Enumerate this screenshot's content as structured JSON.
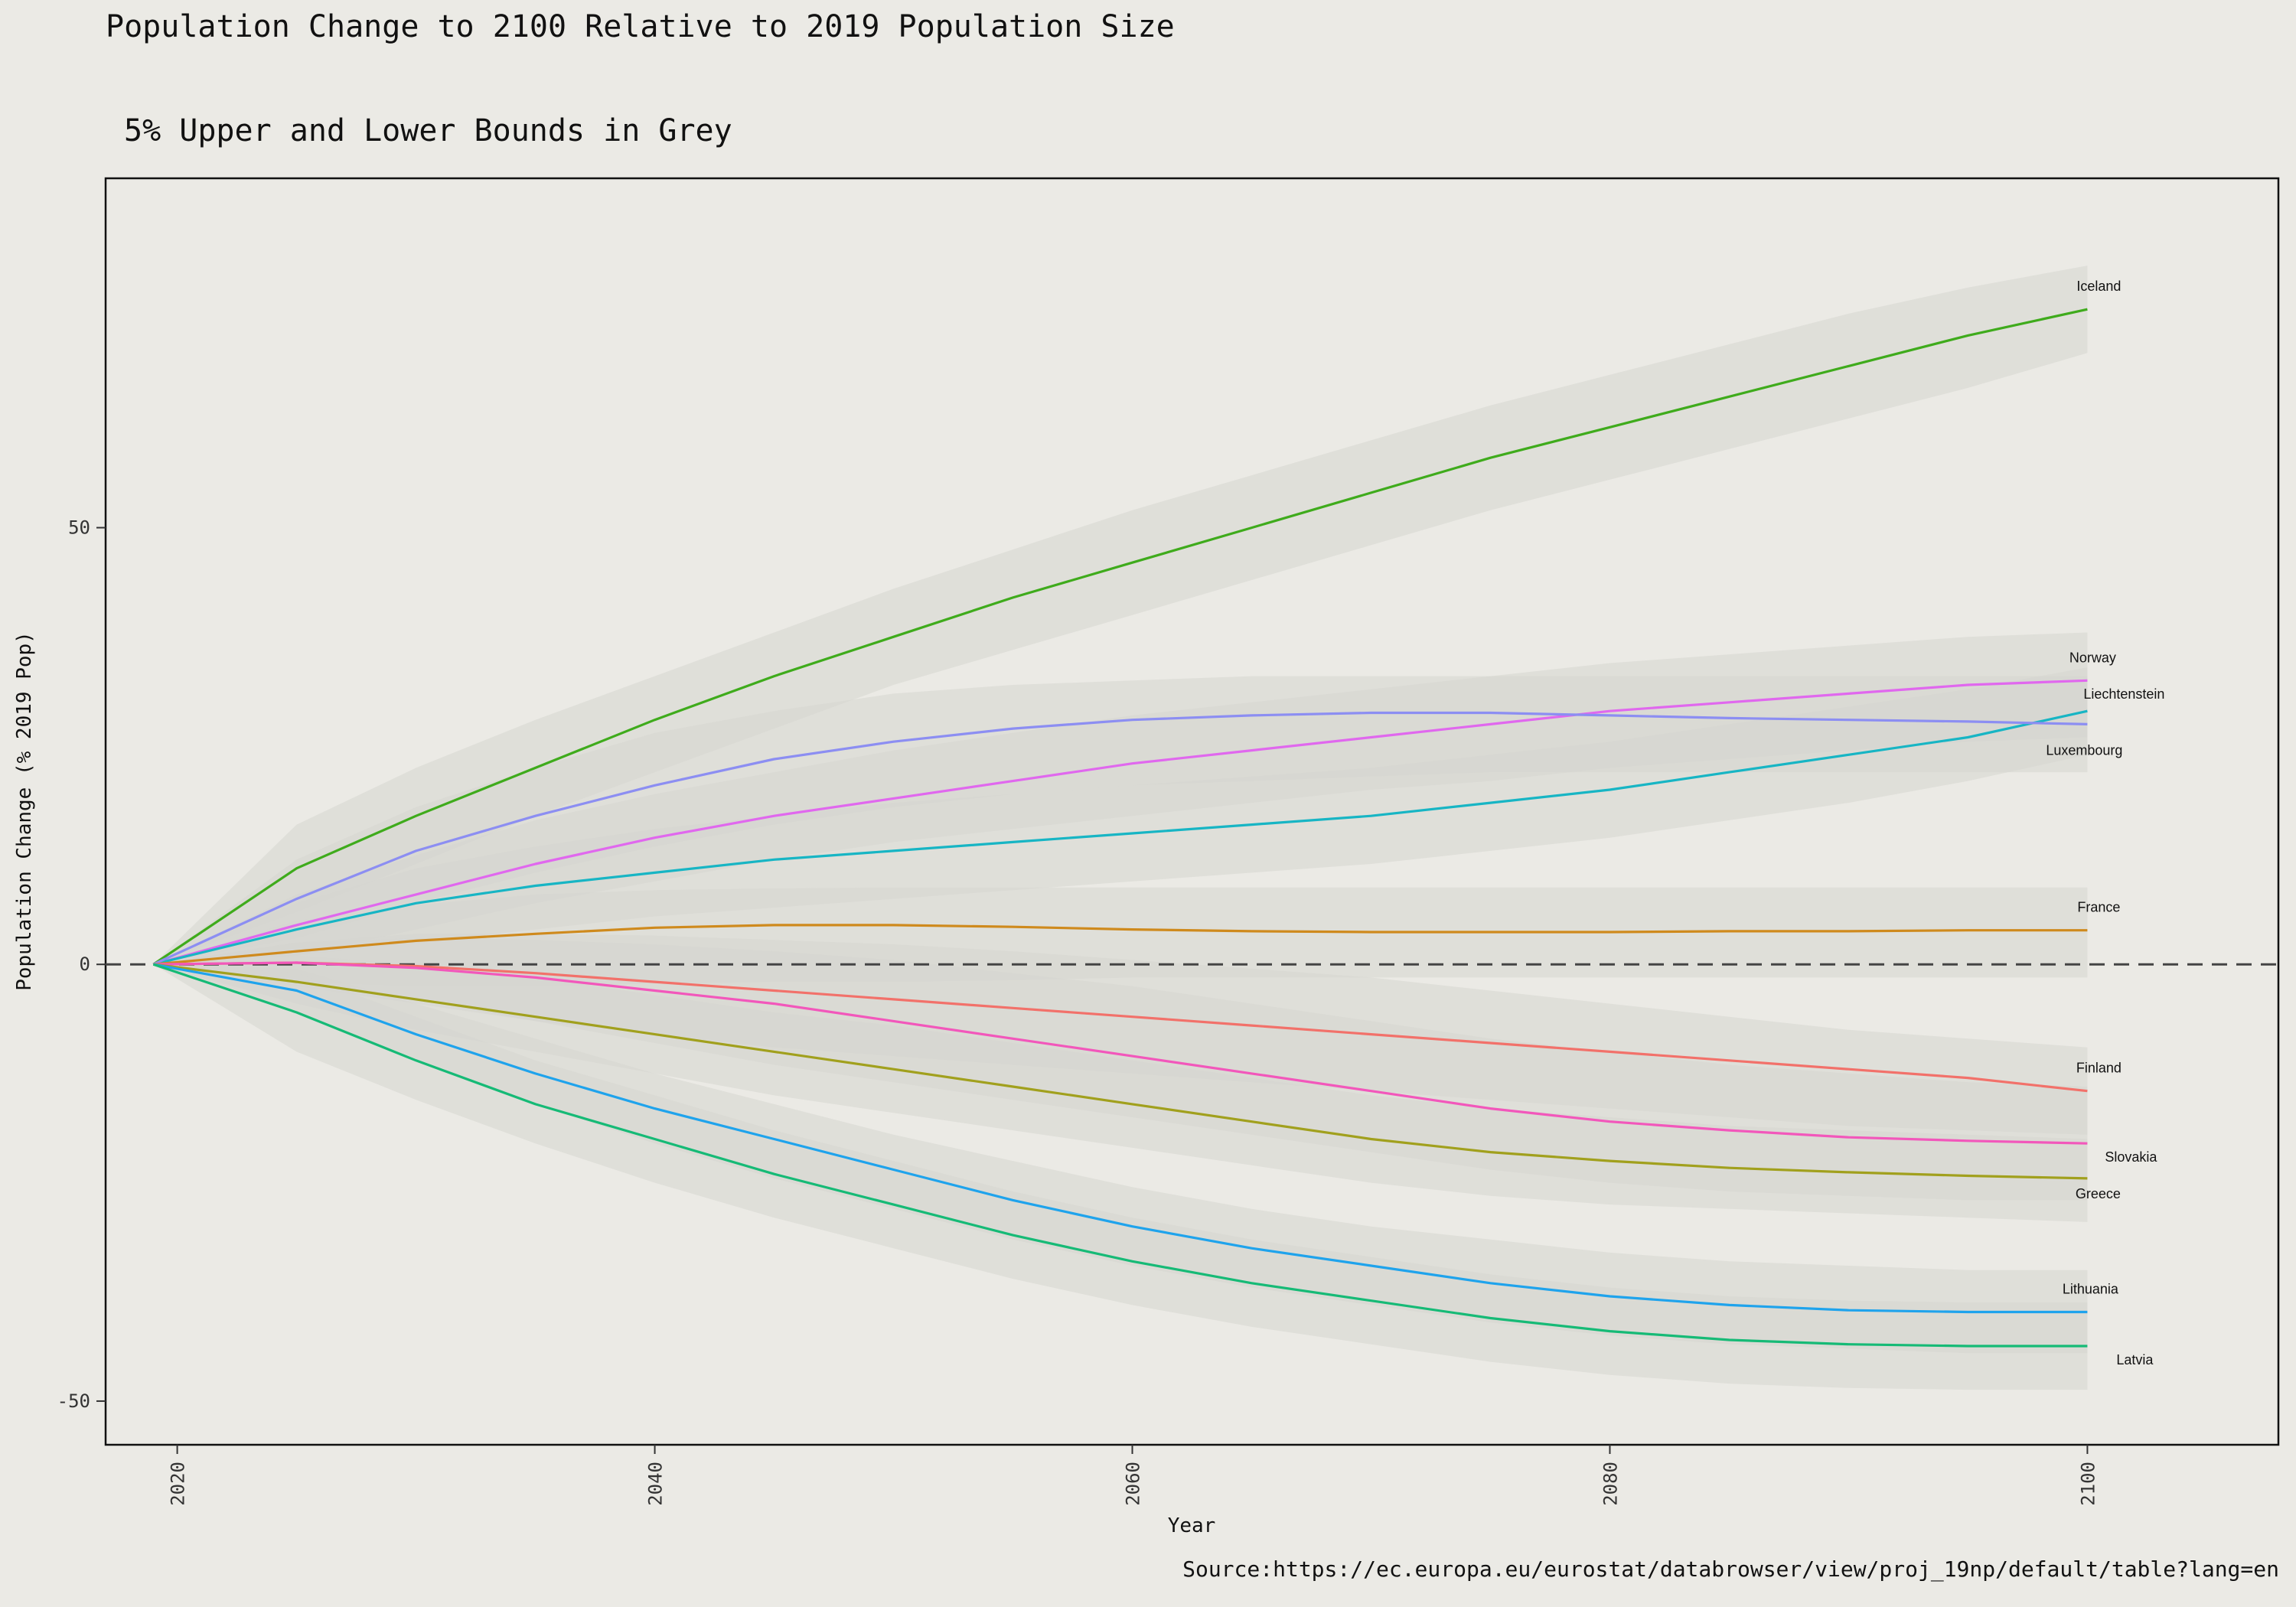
{
  "chart_data": {
    "type": "line",
    "title": "Population Change to 2100 Relative to 2019 Population Size",
    "subtitle": "5% Upper and Lower Bounds in Grey",
    "xlabel": "Year",
    "ylabel": "Population Change (% 2019 Pop)",
    "caption": "Source:https://ec.europa.eu/eurostat/databrowser/view/proj_19np/default/table?lang=en",
    "xlim": [
      2017,
      2108
    ],
    "ylim": [
      -55,
      90
    ],
    "x_ticks": [
      2020,
      2040,
      2060,
      2080,
      2100
    ],
    "y_ticks": [
      50,
      0,
      -50
    ],
    "reference_line": 0,
    "band_colour": "#d6d5d0",
    "x": [
      2019,
      2025,
      2030,
      2035,
      2040,
      2045,
      2050,
      2055,
      2060,
      2065,
      2070,
      2075,
      2080,
      2085,
      2090,
      2095,
      2100
    ],
    "series": [
      {
        "name": "Iceland",
        "color": "#3fab1c",
        "values": [
          0,
          11,
          17,
          22.5,
          28,
          33,
          37.5,
          42,
          46,
          50,
          54,
          58,
          61.5,
          65,
          68.5,
          72,
          75
        ],
        "lower": [
          0,
          6,
          11.5,
          17,
          22,
          27,
          32,
          36,
          40,
          44,
          48,
          52,
          55.5,
          59,
          62.5,
          66,
          70
        ],
        "upper": [
          0,
          16,
          22.5,
          28,
          33,
          38,
          43,
          47.5,
          52,
          56,
          60,
          64,
          67.5,
          71,
          74.5,
          77.5,
          80
        ]
      },
      {
        "name": "Norway",
        "color": "#e068ee",
        "values": [
          0,
          4.5,
          8,
          11.5,
          14.5,
          17,
          19,
          21,
          23,
          24.5,
          26,
          27.5,
          29,
          30,
          31,
          32,
          32.5
        ],
        "lower": [
          0,
          1,
          4,
          7,
          9.5,
          12,
          14,
          15.5,
          17,
          18.5,
          20,
          21,
          22.5,
          23.5,
          24.5,
          25.5,
          26
        ],
        "upper": [
          0,
          8,
          12.5,
          16.5,
          19.5,
          22,
          24.5,
          26.5,
          28.5,
          30,
          31.5,
          33,
          34.5,
          35.5,
          36.5,
          37.5,
          38
        ]
      },
      {
        "name": "Liechtenstein",
        "color": "#17b5c4",
        "values": [
          0,
          4,
          7,
          9,
          10.5,
          12,
          13,
          14,
          15,
          16,
          17,
          18.5,
          20,
          22,
          24,
          26,
          29
        ],
        "lower": [
          0,
          1,
          2.5,
          4,
          5.5,
          6.5,
          7.5,
          8.5,
          9.5,
          10.5,
          11.5,
          13,
          14.5,
          16.5,
          18.5,
          21,
          24
        ],
        "upper": [
          0,
          7,
          11,
          13.5,
          15.5,
          17,
          18.5,
          19.5,
          20.5,
          21.5,
          22.5,
          24,
          25.5,
          27.5,
          29.5,
          31.5,
          34
        ]
      },
      {
        "name": "Luxembourg",
        "color": "#8c8ef2",
        "values": [
          0,
          7.5,
          13,
          17,
          20.5,
          23.5,
          25.5,
          27,
          28,
          28.5,
          28.8,
          28.8,
          28.5,
          28.2,
          28,
          27.8,
          27.5
        ],
        "lower": [
          0,
          3,
          7,
          10.5,
          13.5,
          16,
          18,
          19.5,
          20.5,
          21,
          21.5,
          22,
          22,
          22,
          22,
          22,
          22
        ],
        "upper": [
          0,
          12,
          18,
          22.5,
          26.5,
          29,
          31,
          32,
          32.5,
          33,
          33,
          33,
          33,
          33,
          33,
          33,
          33
        ]
      },
      {
        "name": "France",
        "color": "#cf8a1d",
        "values": [
          0,
          1.5,
          2.7,
          3.5,
          4.2,
          4.5,
          4.5,
          4.3,
          4,
          3.8,
          3.7,
          3.7,
          3.7,
          3.8,
          3.8,
          3.9,
          3.9
        ],
        "lower": [
          0,
          -2,
          -2.5,
          -2.5,
          -2.2,
          -2,
          -2,
          -1.8,
          -1.5,
          -1.5,
          -1.5,
          -1.5,
          -1.5,
          -1.5,
          -1.5,
          -1.5,
          -1.5
        ],
        "upper": [
          0,
          5,
          6.8,
          8,
          8.5,
          8.7,
          8.8,
          8.8,
          8.8,
          8.8,
          8.8,
          8.8,
          8.8,
          8.8,
          8.8,
          8.8,
          8.8
        ]
      },
      {
        "name": "Finland",
        "color": "#f2716a",
        "values": [
          0,
          0.2,
          -0.2,
          -1,
          -2,
          -3,
          -4,
          -5,
          -6,
          -7,
          -8,
          -9,
          -10,
          -11,
          -12,
          -13,
          -14.5
        ],
        "lower": [
          0,
          -2.5,
          -4.5,
          -6.5,
          -8,
          -9.5,
          -10.5,
          -11.5,
          -12.5,
          -13.5,
          -14.5,
          -15.5,
          -16.5,
          -17.5,
          -18.5,
          -19,
          -19.5
        ],
        "upper": [
          0,
          2.5,
          3.5,
          3.5,
          3.3,
          2.8,
          2.3,
          1.5,
          0.5,
          -0.5,
          -1.5,
          -3,
          -4.5,
          -6,
          -7.5,
          -8.5,
          -9.5
        ]
      },
      {
        "name": "Slovakia",
        "color": "#f257bb",
        "values": [
          0,
          0.2,
          -0.4,
          -1.5,
          -3,
          -4.5,
          -6.5,
          -8.5,
          -10.5,
          -12.5,
          -14.5,
          -16.5,
          -18,
          -19,
          -19.8,
          -20.2,
          -20.5
        ],
        "lower": [
          0,
          -2,
          -4,
          -6.5,
          -9,
          -11.5,
          -13.5,
          -15.5,
          -17.5,
          -19.5,
          -21.5,
          -23.5,
          -25,
          -26,
          -26.5,
          -27,
          -27
        ],
        "upper": [
          0,
          2.5,
          3,
          2.8,
          2.3,
          1.5,
          0.5,
          -1,
          -2.5,
          -4.5,
          -6.5,
          -8.5,
          -10,
          -11.5,
          -12.5,
          -13.5,
          -14
        ]
      },
      {
        "name": "Greece",
        "color": "#a1a01d",
        "values": [
          0,
          -2,
          -4,
          -6,
          -8,
          -10,
          -12,
          -14,
          -16,
          -18,
          -20,
          -21.5,
          -22.5,
          -23.3,
          -23.8,
          -24.2,
          -24.5
        ],
        "lower": [
          0,
          -4.5,
          -7.5,
          -10,
          -12.5,
          -15,
          -17,
          -19,
          -21,
          -23,
          -25,
          -26.5,
          -27.5,
          -28,
          -28.5,
          -29,
          -29.5
        ],
        "upper": [
          0,
          1,
          0,
          -1.5,
          -3.5,
          -5.5,
          -7,
          -9,
          -11,
          -13,
          -15,
          -16.5,
          -17.5,
          -18.5,
          -19,
          -19.5,
          -20
        ]
      },
      {
        "name": "Lithuania",
        "color": "#1fa3ec",
        "values": [
          0,
          -3,
          -8,
          -12.5,
          -16.5,
          -20,
          -23.5,
          -27,
          -30,
          -32.5,
          -34.5,
          -36.5,
          -38,
          -39,
          -39.6,
          -39.8,
          -39.8
        ],
        "lower": [
          0,
          -5.5,
          -11,
          -16,
          -20.5,
          -24.5,
          -28,
          -31.5,
          -34.5,
          -37,
          -39,
          -41,
          -42.5,
          -43.5,
          -44,
          -44.5,
          -44.5
        ],
        "upper": [
          0,
          -0.5,
          -4.5,
          -8.5,
          -12.5,
          -16,
          -19.5,
          -22.5,
          -25.5,
          -28,
          -30,
          -31.5,
          -33,
          -34,
          -34.5,
          -35,
          -35
        ]
      },
      {
        "name": "Latvia",
        "color": "#16ba76",
        "values": [
          0,
          -5.5,
          -11,
          -16,
          -20,
          -24,
          -27.5,
          -31,
          -34,
          -36.5,
          -38.5,
          -40.5,
          -42,
          -43,
          -43.5,
          -43.7,
          -43.7
        ],
        "lower": [
          0,
          -10,
          -15.5,
          -20.5,
          -25,
          -29,
          -32.5,
          -36,
          -39,
          -41.5,
          -43.5,
          -45.5,
          -47,
          -48,
          -48.5,
          -48.7,
          -48.7
        ],
        "upper": [
          0,
          -1,
          -6,
          -11,
          -15,
          -19,
          -22.5,
          -26,
          -29,
          -31.5,
          -33.5,
          -35.5,
          -37,
          -38,
          -38.5,
          -38.7,
          -38.7
        ]
      }
    ]
  }
}
